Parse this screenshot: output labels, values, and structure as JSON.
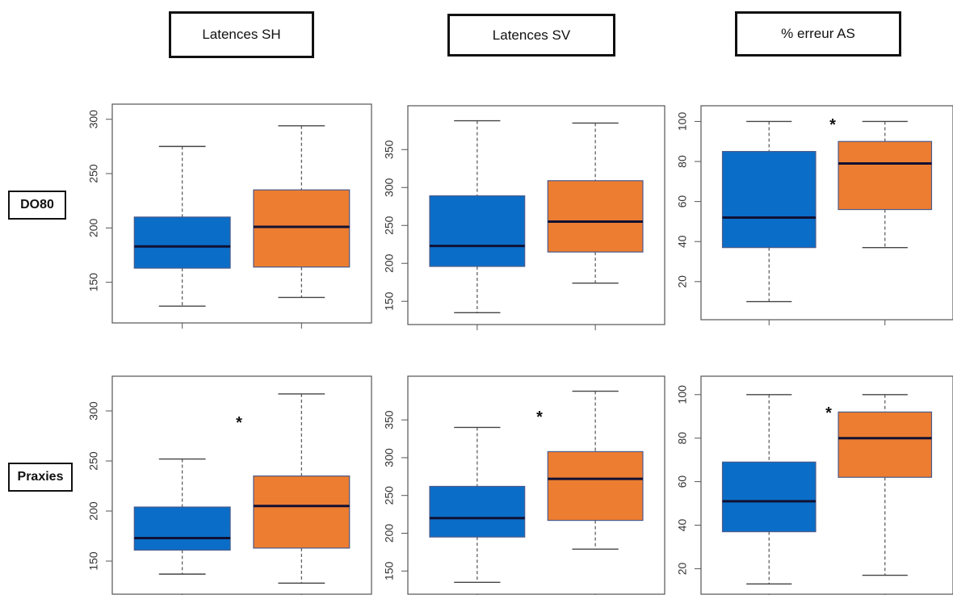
{
  "headers": [
    "Latences SH",
    "Latences SV",
    "% erreur AS"
  ],
  "row_labels": [
    "DO80",
    "Praxies"
  ],
  "colors": {
    "group1": "#0a6ec8",
    "group2": "#ed7d31",
    "box_border": "#4a5a8a",
    "median": "#111133"
  },
  "chart_data": [
    {
      "type": "box",
      "row": "DO80",
      "column": "Latences SH",
      "ylim": [
        120,
        305
      ],
      "yticks": [
        150,
        200,
        250,
        300
      ],
      "significant": false,
      "series": [
        {
          "whislo": 128,
          "q1": 163,
          "med": 183,
          "q3": 210,
          "whishi": 275
        },
        {
          "whislo": 136,
          "q1": 164,
          "med": 201,
          "q3": 235,
          "whishi": 294
        }
      ]
    },
    {
      "type": "box",
      "row": "DO80",
      "column": "Latences SV",
      "ylim": [
        130,
        395
      ],
      "yticks": [
        150,
        200,
        250,
        300,
        350
      ],
      "significant": false,
      "series": [
        {
          "whislo": 135,
          "q1": 196,
          "med": 223,
          "q3": 289,
          "whishi": 388
        },
        {
          "whislo": 174,
          "q1": 215,
          "med": 255,
          "q3": 309,
          "whishi": 385
        }
      ]
    },
    {
      "type": "box",
      "row": "DO80",
      "column": "% erreur AS",
      "ylim": [
        5,
        103
      ],
      "yticks": [
        20,
        40,
        60,
        80,
        100
      ],
      "significant": true,
      "series": [
        {
          "whislo": 10,
          "q1": 37,
          "med": 52,
          "q3": 85,
          "whishi": 100
        },
        {
          "whislo": 37,
          "q1": 56,
          "med": 79,
          "q3": 90,
          "whishi": 100
        }
      ]
    },
    {
      "type": "box",
      "row": "Praxies",
      "column": "Latences SH",
      "ylim": [
        125,
        325
      ],
      "yticks": [
        150,
        200,
        250,
        300
      ],
      "significant": true,
      "series": [
        {
          "whislo": 137,
          "q1": 161,
          "med": 173,
          "q3": 204,
          "whishi": 252
        },
        {
          "whislo": 128,
          "q1": 163,
          "med": 205,
          "q3": 235,
          "whishi": 317
        }
      ]
    },
    {
      "type": "box",
      "row": "Praxies",
      "column": "Latences SV",
      "ylim": [
        130,
        395
      ],
      "yticks": [
        150,
        200,
        250,
        300,
        350
      ],
      "significant": true,
      "series": [
        {
          "whislo": 135,
          "q1": 195,
          "med": 220,
          "q3": 262,
          "whishi": 340
        },
        {
          "whislo": 179,
          "q1": 217,
          "med": 272,
          "q3": 308,
          "whishi": 388
        }
      ]
    },
    {
      "type": "box",
      "row": "Praxies",
      "column": "% erreur AS",
      "ylim": [
        12,
        104
      ],
      "yticks": [
        20,
        40,
        60,
        80,
        100
      ],
      "significant": true,
      "series": [
        {
          "whislo": 13,
          "q1": 37,
          "med": 51,
          "q3": 69,
          "whishi": 100
        },
        {
          "whislo": 17,
          "q1": 62,
          "med": 80,
          "q3": 92,
          "whishi": 100
        }
      ]
    }
  ],
  "significance_marker": "*"
}
